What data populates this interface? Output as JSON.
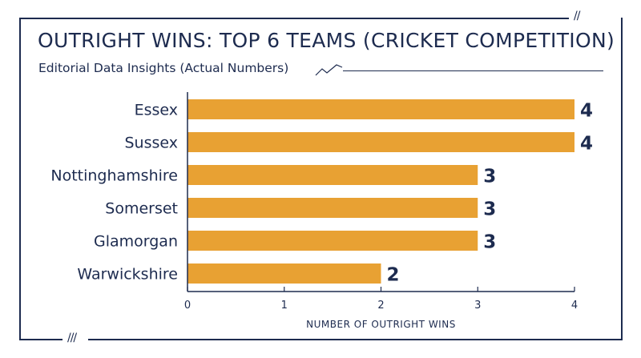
{
  "chart_data": {
    "type": "bar",
    "orientation": "horizontal",
    "title": "OUTRIGHT WINS: TOP 6 TEAMS (CRICKET COMPETITION)",
    "subtitle": "Editorial Data Insights (Actual Numbers)",
    "categories": [
      "Essex",
      "Sussex",
      "Nottinghamshire",
      "Somerset",
      "Glamorgan",
      "Warwickshire"
    ],
    "values": [
      4,
      4,
      3,
      3,
      3,
      2
    ],
    "xlabel": "NUMBER OF OUTRIGHT WINS",
    "ylabel": "",
    "xlim": [
      0,
      4
    ],
    "xticks": [
      0,
      1,
      2,
      3,
      4
    ],
    "grid": false,
    "bar_color": "#e8a133",
    "text_color": "#1d2b4f"
  }
}
